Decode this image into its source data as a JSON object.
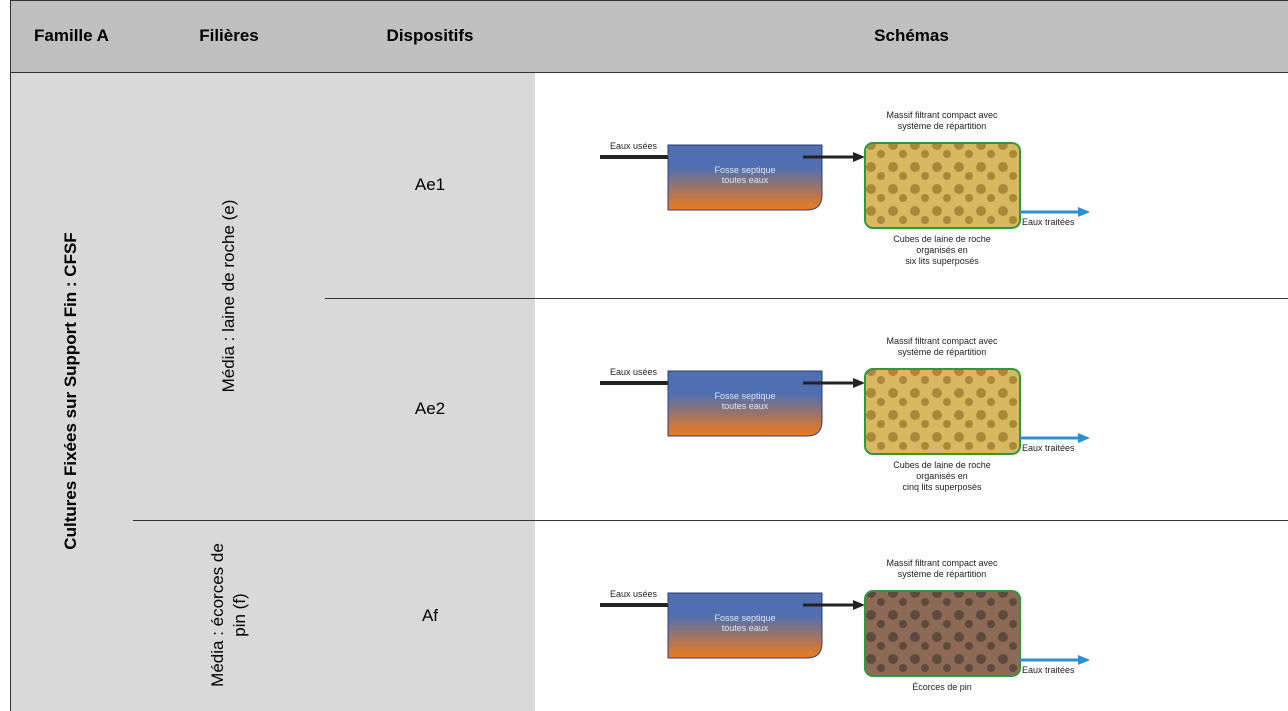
{
  "header": {
    "famille": "Famille A",
    "filieres": "Filières",
    "dispositifs": "Dispositifs",
    "schemas": "Schémas"
  },
  "family": "Cultures Fixées sur  Support Fin :  CFSF",
  "filieres": [
    "Média : laine de roche (e)",
    "Média : écorces de pin (f)"
  ],
  "rows": [
    {
      "dispositif": "Ae1",
      "schema": {
        "inlet": "Eaux usées",
        "tank": [
          "Fosse septique",
          "toutes eaux"
        ],
        "top": [
          "Massif filtrant compact avec",
          "système de répartition"
        ],
        "outlet": "Eaux traitées",
        "bottom": [
          "Cubes de laine de roche",
          "organisés en",
          "six lits superposés"
        ]
      }
    },
    {
      "dispositif": "Ae2",
      "schema": {
        "inlet": "Eaux usées",
        "tank": [
          "Fosse septique",
          "toutes eaux"
        ],
        "top": [
          "Massif filtrant compact avec",
          "système de répartition"
        ],
        "outlet": "Eaux traitées",
        "bottom": [
          "Cubes de laine de roche",
          "organisés en",
          "cinq lits superposés"
        ]
      }
    },
    {
      "dispositif": "Af",
      "schema": {
        "inlet": "Eaux usées",
        "tank": [
          "Fosse septique",
          "toutes eaux"
        ],
        "top": [
          "Massif filtrant compact avec",
          "système de répartition"
        ],
        "outlet": "Eaux traitées",
        "bottom": [
          "Écorces de pin"
        ]
      }
    }
  ]
}
